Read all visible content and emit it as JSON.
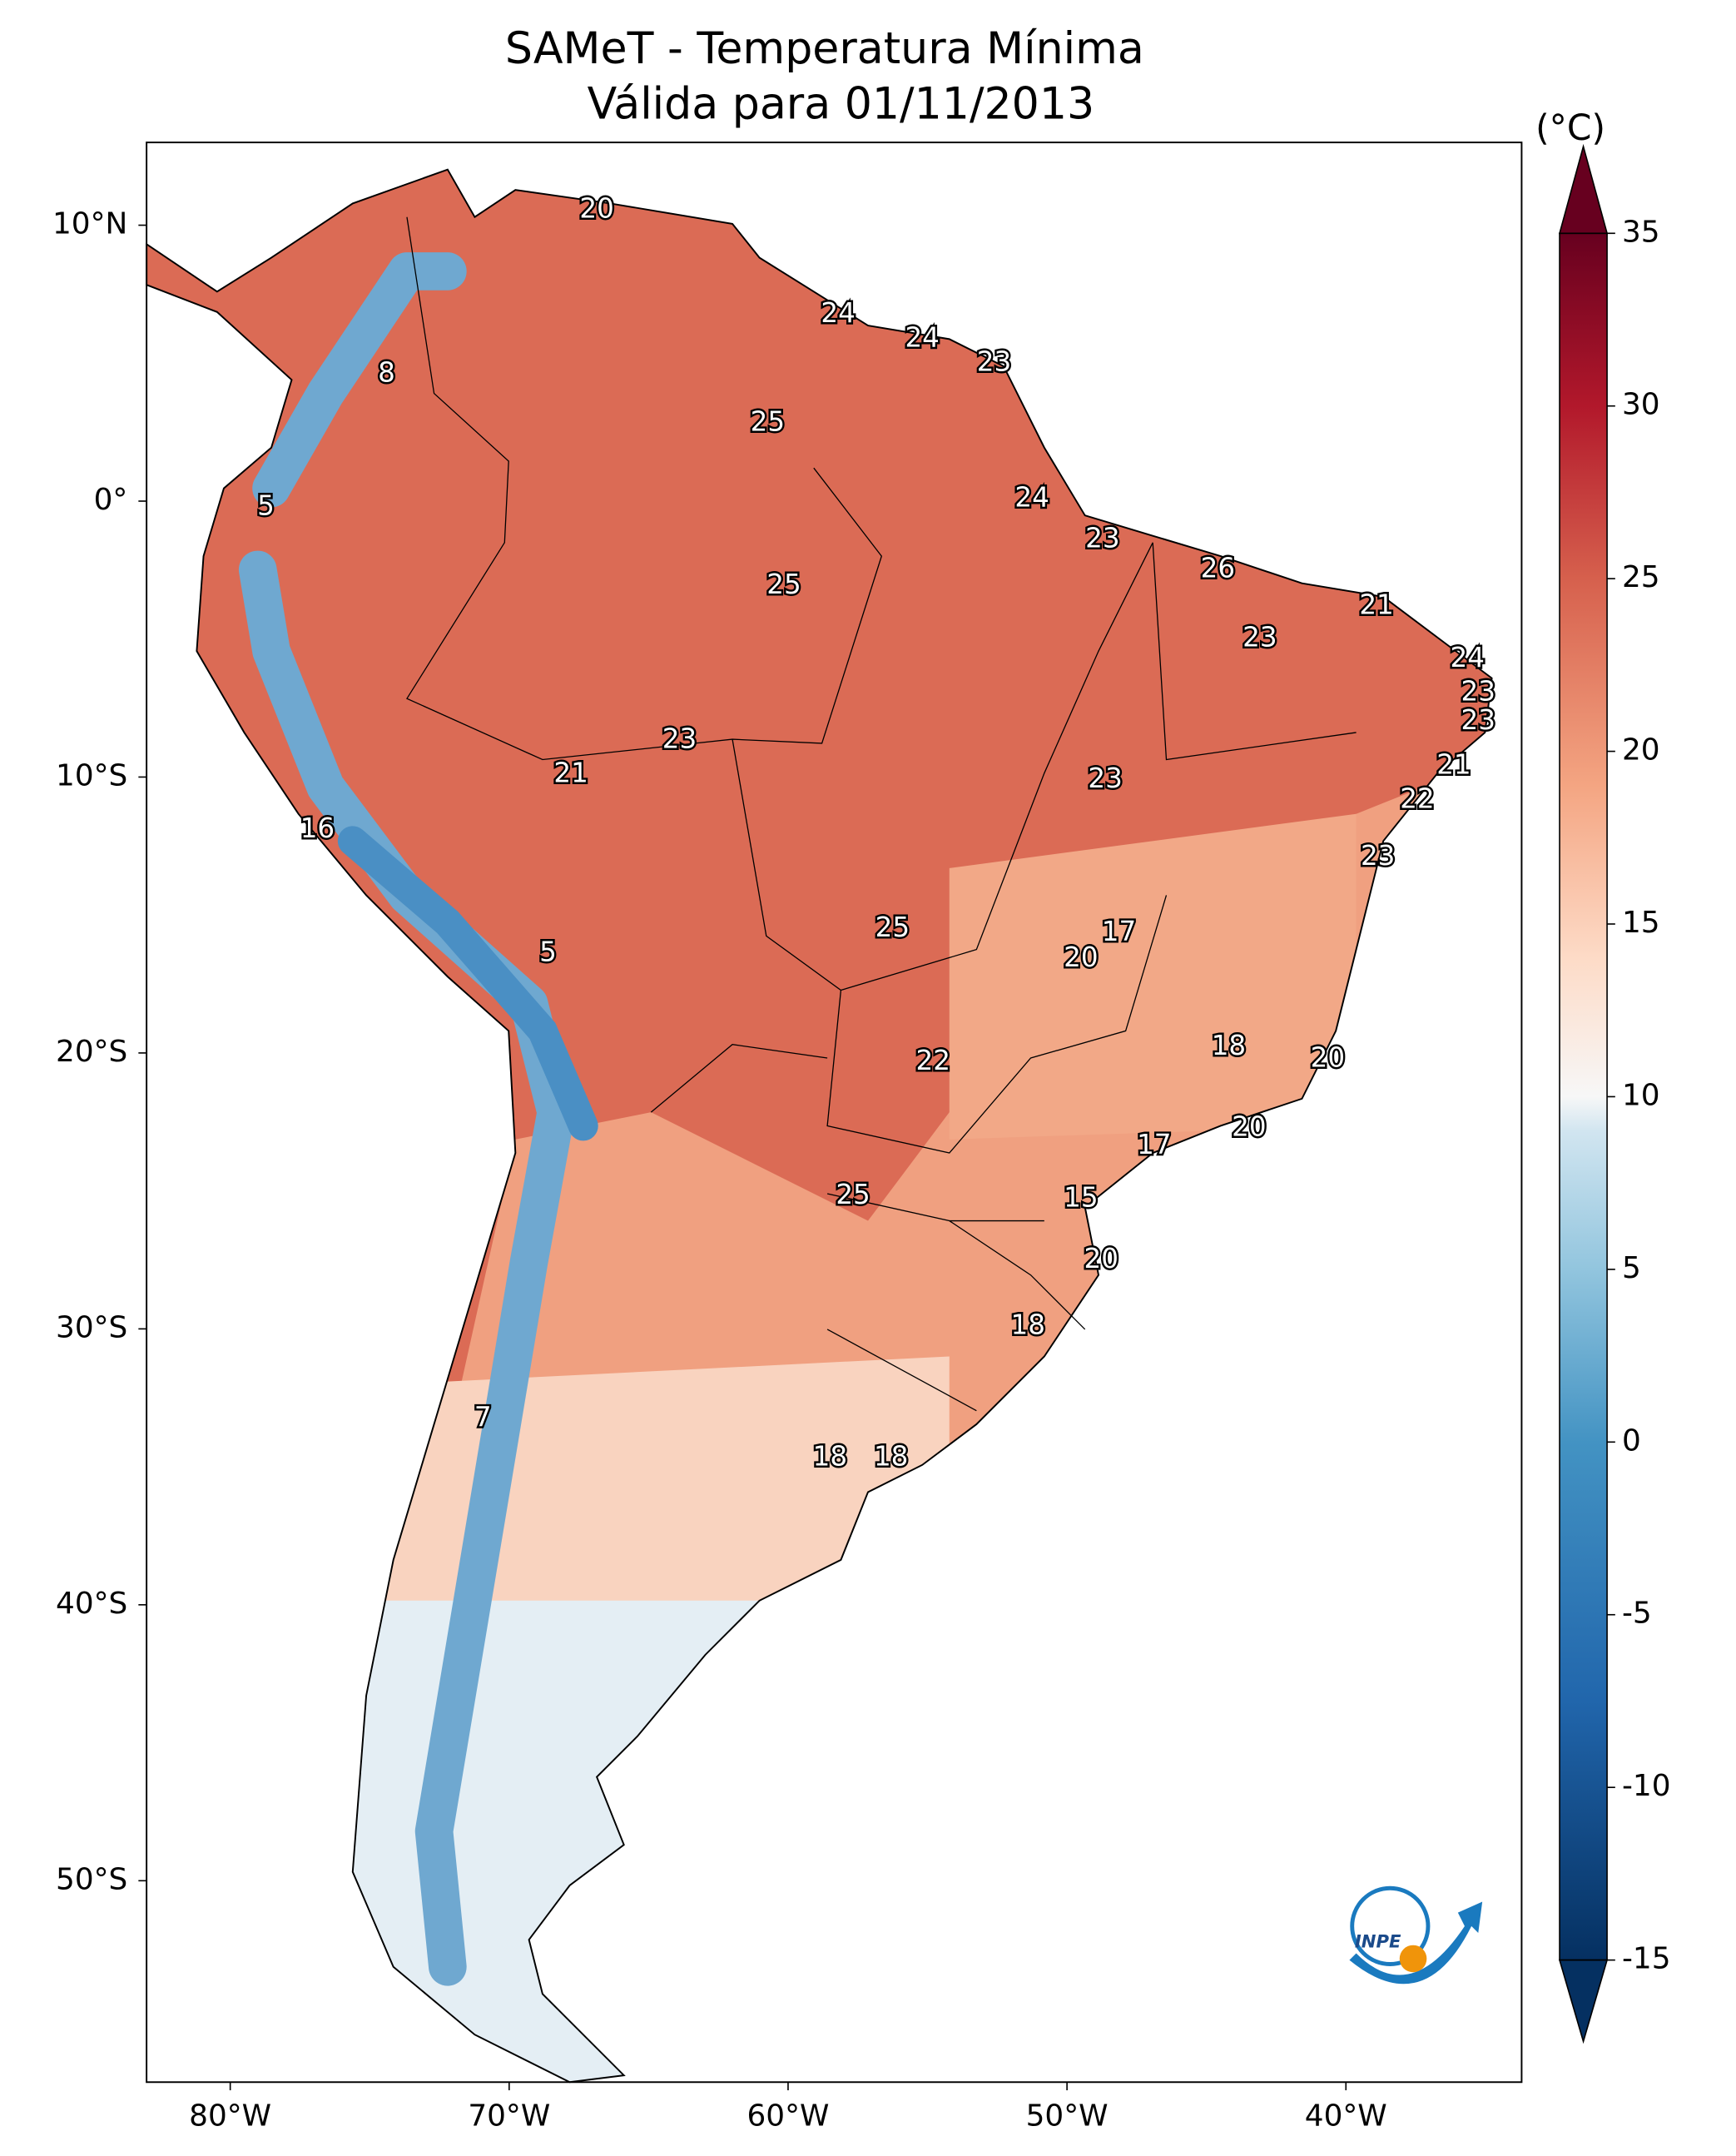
{
  "title": "SAMeT - Temperatura Mínima",
  "subtitle": "Válida para 01/11/2013",
  "map": {
    "xlim": [
      -83,
      -33.7
    ],
    "ylim": [
      -57.3,
      13
    ],
    "xticks": [
      {
        "value": -80,
        "label": "80°W"
      },
      {
        "value": -70,
        "label": "70°W"
      },
      {
        "value": -60,
        "label": "60°W"
      },
      {
        "value": -50,
        "label": "50°W"
      },
      {
        "value": -40,
        "label": "40°W"
      }
    ],
    "yticks": [
      {
        "value": 10,
        "label": "10°N"
      },
      {
        "value": 0,
        "label": "0°"
      },
      {
        "value": -10,
        "label": "10°S"
      },
      {
        "value": -20,
        "label": "20°S"
      },
      {
        "value": -30,
        "label": "30°S"
      },
      {
        "value": -40,
        "label": "40°S"
      },
      {
        "value": -50,
        "label": "50°S"
      }
    ],
    "labels": [
      20,
      24,
      24,
      23,
      8,
      25,
      5,
      24,
      23,
      26,
      25,
      21,
      23,
      24,
      23,
      23,
      23,
      21,
      21,
      23,
      22,
      16,
      23,
      17,
      25,
      5,
      20,
      18,
      20,
      22,
      20,
      17,
      25,
      15,
      20,
      18,
      7,
      18,
      18
    ]
  },
  "colorbar": {
    "unit": "(°C)",
    "lim": [
      -15,
      35
    ],
    "ticks": [
      -15,
      -10,
      -5,
      0,
      5,
      10,
      15,
      20,
      25,
      30,
      35
    ]
  },
  "logo_text": "INPE"
}
